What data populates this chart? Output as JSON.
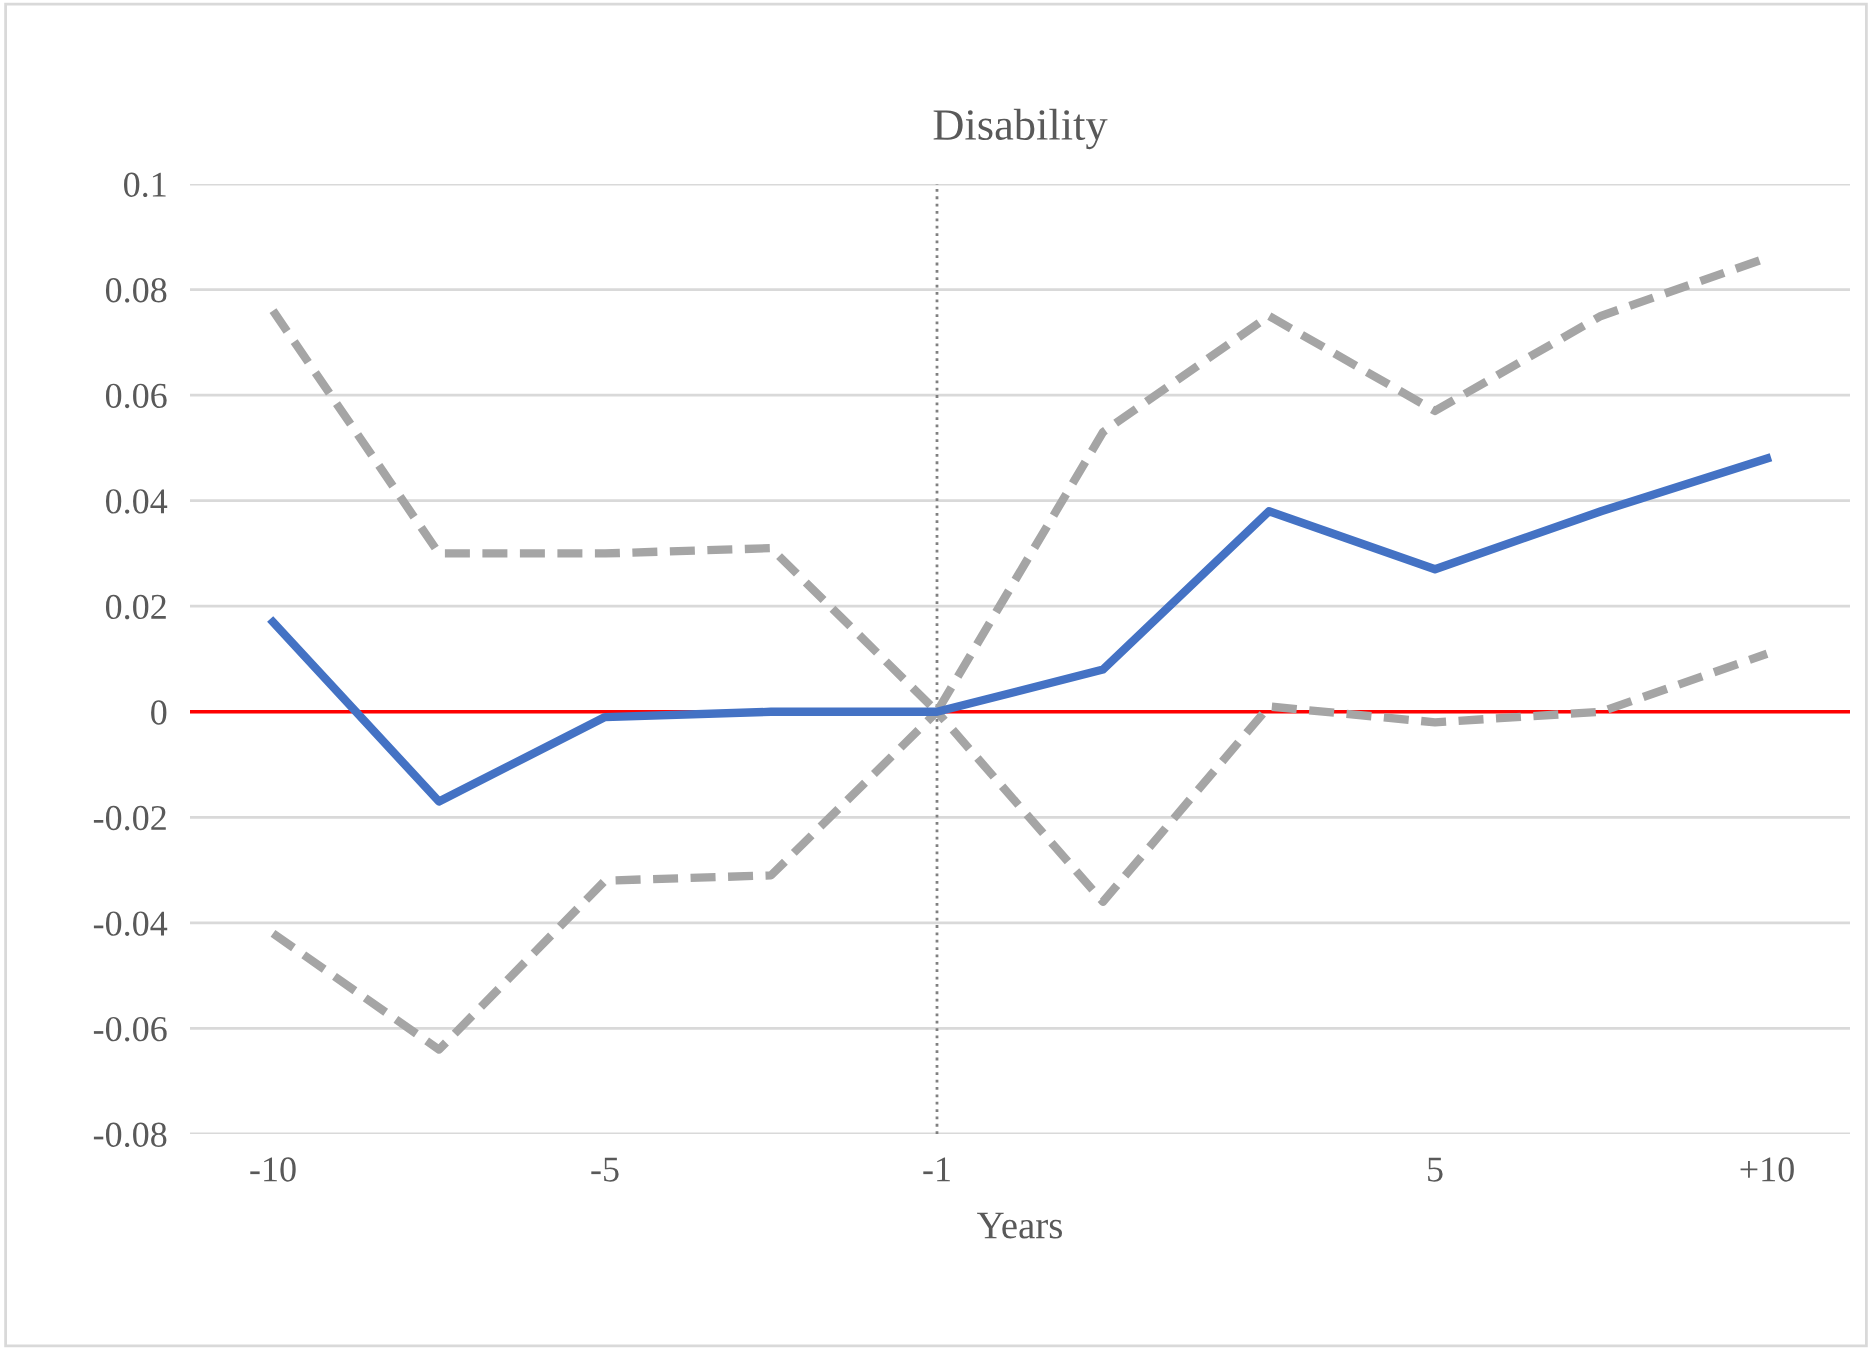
{
  "chart_data": {
    "type": "line",
    "title": "Disability",
    "xlabel": "Years",
    "categories": [
      "-10",
      null,
      "-5",
      null,
      "-1",
      null,
      null,
      "5",
      null,
      "+10"
    ],
    "series": [
      {
        "color": "#a5a5a5",
        "line_style": "dashed",
        "values": [
          0.076,
          0.03,
          0.03,
          0.031,
          0.0,
          0.053,
          0.075,
          0.057,
          0.075,
          0.086
        ]
      },
      {
        "color": "#a5a5a5",
        "line_style": "dashed",
        "values": [
          -0.042,
          -0.064,
          -0.032,
          -0.031,
          0.0,
          -0.036,
          0.001,
          -0.002,
          0.0,
          0.011
        ]
      },
      {
        "color": "#4472c4",
        "line_style": "solid",
        "values": [
          0.017,
          -0.017,
          -0.001,
          0.0,
          0.0,
          0.008,
          0.038,
          0.027,
          0.038,
          0.048
        ]
      }
    ],
    "ylim": [
      -0.08,
      0.1
    ],
    "yticks": [
      -0.08,
      -0.06,
      -0.04,
      -0.02,
      0,
      0.02,
      0.04,
      0.06,
      0.08,
      0.1
    ],
    "grid": "y",
    "marker": "none",
    "ref_lines": [
      {
        "axis": "y",
        "value": 0,
        "color": "#ff0000",
        "line_style": "solid"
      },
      {
        "axis": "x",
        "value": "-1",
        "color": "#808080",
        "line_style": "dotted"
      }
    ]
  }
}
